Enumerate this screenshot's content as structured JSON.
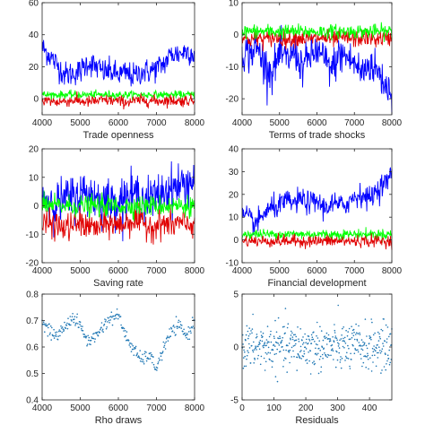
{
  "colors": {
    "blue": "#0000ff",
    "red": "#e00000",
    "green": "#00ff00",
    "scatter": "#1f77b4",
    "axis": "#262626"
  },
  "chart_data": [
    {
      "type": "line",
      "xlabel": "Trade openness",
      "xlim": [
        4000,
        8000
      ],
      "ylim": [
        -10,
        60
      ],
      "xticks": [
        4000,
        5000,
        6000,
        7000,
        8000
      ],
      "yticks": [
        0,
        20,
        40,
        60
      ],
      "series": [
        {
          "color": "blue",
          "level": [
            32,
            27,
            21,
            15,
            16,
            17,
            23,
            20,
            17,
            17,
            15,
            16,
            14,
            17,
            17,
            19,
            22,
            28,
            28,
            30,
            28
          ],
          "noise": 4
        },
        {
          "color": "green",
          "level": [
            2.5,
            2.5,
            2.5,
            2.5,
            2.5,
            2.5,
            2.5,
            2.5,
            2.5,
            2.5,
            2.5,
            2.5,
            2.5,
            2.5,
            2.5,
            2.5,
            2.5,
            2.5,
            2.5,
            2.5,
            2.5
          ],
          "noise": 1.2
        },
        {
          "color": "red",
          "level": [
            -1,
            -1.5,
            -2,
            -1.5,
            -1,
            -1.5,
            -2,
            -1.5,
            -1,
            -1,
            -1.5,
            -2,
            -1.5,
            -1,
            -1,
            -1.5,
            -1,
            -1,
            -1.5,
            -1,
            -1
          ],
          "noise": 1.8
        }
      ]
    },
    {
      "type": "line",
      "xlabel": "Terms of trade shocks",
      "xlim": [
        4000,
        8000
      ],
      "ylim": [
        -25,
        10
      ],
      "xticks": [
        4000,
        5000,
        6000,
        7000,
        8000
      ],
      "yticks": [
        -20,
        -10,
        0,
        10
      ],
      "series": [
        {
          "color": "blue",
          "level": [
            -5,
            -6,
            -4,
            -9,
            -12,
            -6,
            -8,
            -5,
            -10,
            -7,
            -5,
            -8,
            -11,
            -6,
            -7,
            -9,
            -12,
            -9,
            -11,
            -15,
            -18
          ],
          "noise": 3
        },
        {
          "color": "red",
          "level": [
            -1,
            -1.5,
            -1,
            -1.5,
            -1,
            -1,
            -1.5,
            -1,
            -1,
            -1.5,
            -1,
            -1,
            -1.5,
            -1,
            -1,
            -1.5,
            -1,
            -1,
            -1.5,
            -1,
            -1
          ],
          "noise": 1.3
        },
        {
          "color": "green",
          "level": [
            1,
            1,
            1,
            1,
            1,
            1,
            1,
            1,
            1,
            1,
            1,
            1,
            1,
            1,
            1,
            1,
            1,
            1,
            1,
            1,
            1
          ],
          "noise": 1.1
        }
      ]
    },
    {
      "type": "line",
      "xlabel": "Saving rate",
      "xlim": [
        4000,
        8000
      ],
      "ylim": [
        -20,
        20
      ],
      "xticks": [
        4000,
        5000,
        6000,
        7000,
        8000
      ],
      "yticks": [
        -20,
        -10,
        0,
        10,
        20
      ],
      "series": [
        {
          "color": "blue",
          "level": [
            3,
            2,
            1,
            2,
            3,
            4,
            5,
            3,
            2,
            1,
            2,
            3,
            4,
            3,
            2,
            3,
            5,
            6,
            7,
            8,
            9
          ],
          "noise": 4
        },
        {
          "color": "red",
          "level": [
            -7,
            -6,
            -7,
            -8,
            -7,
            -6,
            -7,
            -8,
            -7,
            -6,
            -7,
            -6,
            -5,
            -6,
            -7,
            -7,
            -6,
            -7,
            -6,
            -7,
            -6
          ],
          "noise": 2.5
        },
        {
          "color": "green",
          "level": [
            0,
            0,
            0,
            0,
            0,
            0,
            0,
            0,
            0,
            0,
            0,
            0,
            0,
            0,
            0,
            0,
            0,
            0,
            0,
            0,
            0
          ],
          "noise": 1.8
        }
      ]
    },
    {
      "type": "line",
      "xlabel": "Financial development",
      "xlim": [
        4000,
        8000
      ],
      "ylim": [
        -10,
        40
      ],
      "xticks": [
        4000,
        5000,
        6000,
        7000,
        8000
      ],
      "yticks": [
        -10,
        0,
        10,
        20,
        30,
        40
      ],
      "series": [
        {
          "color": "blue",
          "level": [
            11,
            9,
            7,
            12,
            14,
            15,
            17,
            16,
            18,
            16,
            17,
            14,
            16,
            15,
            16,
            19,
            20,
            18,
            22,
            25,
            28
          ],
          "noise": 2.5
        },
        {
          "color": "green",
          "level": [
            2.5,
            2.5,
            2.5,
            2.5,
            2.5,
            2.5,
            2.5,
            2.5,
            2.5,
            2.5,
            2.5,
            2.5,
            2.5,
            2.5,
            2.5,
            2.5,
            2.5,
            2.5,
            2.5,
            2.5,
            2.5
          ],
          "noise": 1.1
        },
        {
          "color": "red",
          "level": [
            -0.5,
            -0.5,
            -0.5,
            -0.5,
            -0.5,
            -0.5,
            -0.5,
            -0.5,
            -0.5,
            -0.5,
            -0.5,
            -0.5,
            -0.5,
            -0.5,
            -0.5,
            -0.5,
            -0.5,
            -0.5,
            -0.5,
            -0.5,
            -0.5
          ],
          "noise": 1.3
        }
      ]
    },
    {
      "type": "scatter",
      "xlabel": "Rho draws",
      "xlim": [
        4000,
        8000
      ],
      "ylim": [
        0.4,
        0.8
      ],
      "xticks": [
        4000,
        5000,
        6000,
        7000,
        8000
      ],
      "yticks": [
        0.4,
        0.5,
        0.6,
        0.7,
        0.8
      ],
      "series": [
        {
          "color": "scatter",
          "level": [
            0.69,
            0.66,
            0.64,
            0.68,
            0.71,
            0.68,
            0.62,
            0.64,
            0.68,
            0.71,
            0.72,
            0.64,
            0.59,
            0.55,
            0.57,
            0.52,
            0.6,
            0.66,
            0.68,
            0.64,
            0.7
          ],
          "noise": 0.012,
          "points": 300
        }
      ]
    },
    {
      "type": "scatter",
      "xlabel": "Residuals",
      "xlim": [
        0,
        470
      ],
      "ylim": [
        -5,
        5
      ],
      "xticks": [
        0,
        100,
        200,
        300,
        400
      ],
      "yticks": [
        -5,
        0,
        5
      ],
      "series": [
        {
          "color": "scatter",
          "level": [
            0,
            0,
            0,
            0,
            0,
            0,
            0,
            0,
            0,
            0,
            0,
            0,
            0,
            0,
            0,
            0,
            0,
            0,
            0,
            0,
            0
          ],
          "noise": 1.1,
          "points": 470
        }
      ]
    }
  ]
}
